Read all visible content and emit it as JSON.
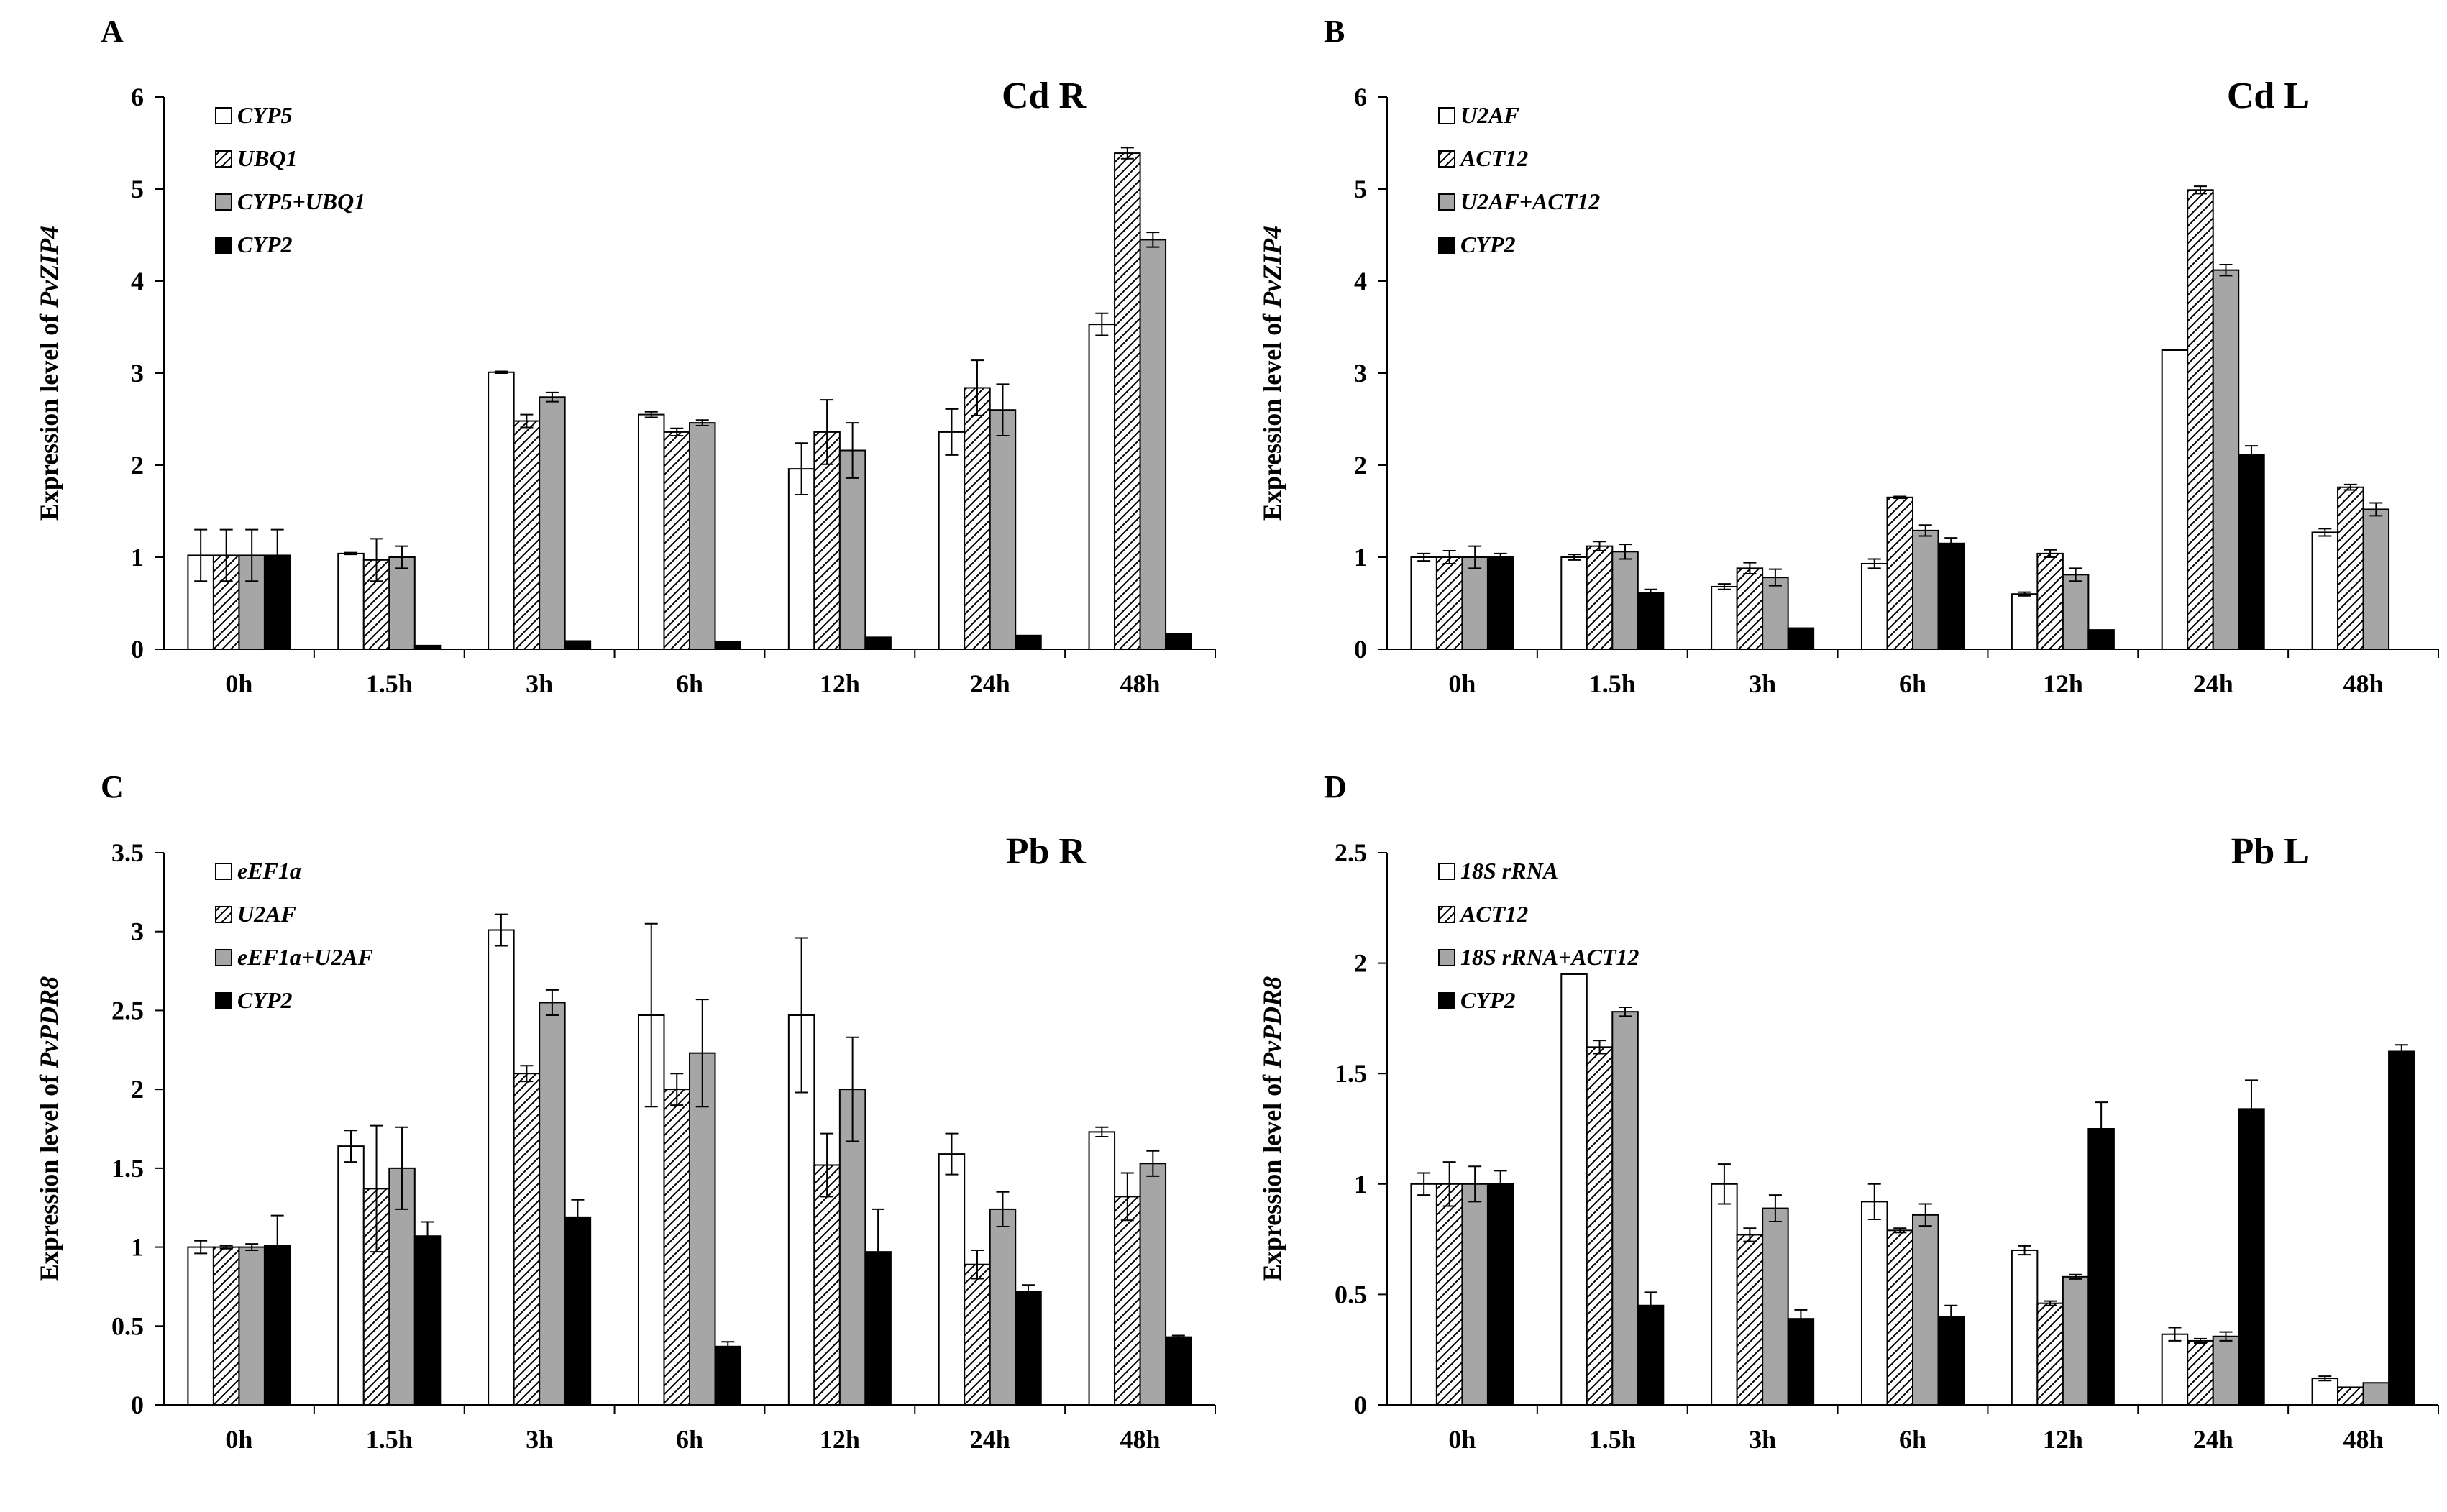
{
  "colors": {
    "series_1": "#ffffff",
    "series_2": "hatch",
    "series_3": "#a6a6a6",
    "series_4": "#000000",
    "axis": "#000000"
  },
  "chart_data": [
    {
      "panel": "A",
      "type": "bar",
      "title": "Cd R",
      "ylabel_prefix": "Expression level of ",
      "ylabel_gene": "PvZIP4",
      "xlabel": "",
      "categories": [
        "0h",
        "1.5h",
        "3h",
        "6h",
        "12h",
        "24h",
        "48h"
      ],
      "ylim": [
        0,
        6
      ],
      "yticks": [
        0,
        1,
        2,
        3,
        4,
        5,
        6
      ],
      "ytick_labels": [
        "0",
        "1",
        "2",
        "3",
        "4",
        "5",
        "6"
      ],
      "legend_position": "top-left",
      "series": [
        {
          "name": "CYP5",
          "values": [
            1.02,
            1.04,
            3.01,
            2.55,
            1.96,
            2.36,
            3.53
          ],
          "errors": [
            0.28,
            0.01,
            0.01,
            0.03,
            0.28,
            0.25,
            0.12
          ]
        },
        {
          "name": "UBQ1",
          "values": [
            1.02,
            0.97,
            2.48,
            2.36,
            2.36,
            2.84,
            5.39
          ],
          "errors": [
            0.28,
            0.23,
            0.07,
            0.04,
            0.35,
            0.3,
            0.06
          ]
        },
        {
          "name": "CYP5+UBQ1",
          "values": [
            1.02,
            1.0,
            2.74,
            2.46,
            2.16,
            2.6,
            4.45
          ],
          "errors": [
            0.28,
            0.12,
            0.05,
            0.03,
            0.3,
            0.28,
            0.08
          ]
        },
        {
          "name": "CYP2",
          "values": [
            1.02,
            0.04,
            0.09,
            0.08,
            0.13,
            0.15,
            0.17
          ],
          "errors": [
            0.28,
            0.0,
            0.0,
            0.0,
            0.0,
            0.0,
            0.0
          ]
        }
      ]
    },
    {
      "panel": "B",
      "type": "bar",
      "title": "Cd L",
      "ylabel_prefix": "Expression level of ",
      "ylabel_gene": "PvZIP4",
      "xlabel": "",
      "categories": [
        "0h",
        "1.5h",
        "3h",
        "6h",
        "12h",
        "24h",
        "48h"
      ],
      "ylim": [
        0,
        6
      ],
      "yticks": [
        0,
        1,
        2,
        3,
        4,
        5,
        6
      ],
      "ytick_labels": [
        "0",
        "1",
        "2",
        "3",
        "4",
        "5",
        "6"
      ],
      "legend_position": "top-left",
      "series": [
        {
          "name": "U2AF",
          "values": [
            1.0,
            1.0,
            0.68,
            0.93,
            0.6,
            3.25,
            1.27
          ],
          "errors": [
            0.04,
            0.03,
            0.03,
            0.05,
            0.02,
            0.0,
            0.04
          ]
        },
        {
          "name": "ACT12",
          "values": [
            1.0,
            1.12,
            0.88,
            1.65,
            1.04,
            4.99,
            1.76
          ],
          "errors": [
            0.07,
            0.05,
            0.06,
            0.01,
            0.04,
            0.04,
            0.03
          ]
        },
        {
          "name": "U2AF+ACT12",
          "values": [
            1.0,
            1.06,
            0.78,
            1.29,
            0.81,
            4.12,
            1.52
          ],
          "errors": [
            0.12,
            0.08,
            0.09,
            0.06,
            0.07,
            0.06,
            0.07
          ]
        },
        {
          "name": "CYP2",
          "values": [
            1.0,
            0.61,
            0.23,
            1.15,
            0.21,
            2.11,
            0.0
          ],
          "errors": [
            0.04,
            0.04,
            0.0,
            0.06,
            0.0,
            0.1,
            0.0
          ]
        }
      ]
    },
    {
      "panel": "C",
      "type": "bar",
      "title": "Pb R",
      "ylabel_prefix": "Expression level of ",
      "ylabel_gene": "PvPDR8",
      "xlabel": "",
      "categories": [
        "0h",
        "1.5h",
        "3h",
        "6h",
        "12h",
        "24h",
        "48h"
      ],
      "ylim": [
        0,
        3.5
      ],
      "yticks": [
        0,
        0.5,
        1,
        1.5,
        2,
        2.5,
        3,
        3.5
      ],
      "ytick_labels": [
        "0",
        "0.5",
        "1",
        "1.5",
        "2",
        "2.5",
        "3",
        "3.5"
      ],
      "legend_position": "top-left",
      "series": [
        {
          "name": "eEF1a",
          "values": [
            1.0,
            1.64,
            3.01,
            2.47,
            2.47,
            1.59,
            1.73
          ],
          "errors": [
            0.04,
            0.1,
            0.1,
            0.58,
            0.49,
            0.13,
            0.03
          ]
        },
        {
          "name": "U2AF",
          "values": [
            1.0,
            1.37,
            2.1,
            2.0,
            1.52,
            0.89,
            1.32
          ],
          "errors": [
            0.01,
            0.4,
            0.05,
            0.1,
            0.2,
            0.09,
            0.15
          ]
        },
        {
          "name": "eEF1a+U2AF",
          "values": [
            1.0,
            1.5,
            2.55,
            2.23,
            2.0,
            1.24,
            1.53
          ],
          "errors": [
            0.02,
            0.26,
            0.08,
            0.34,
            0.33,
            0.11,
            0.08
          ]
        },
        {
          "name": "CYP2",
          "values": [
            1.01,
            1.07,
            1.19,
            0.37,
            0.97,
            0.72,
            0.43
          ],
          "errors": [
            0.19,
            0.09,
            0.11,
            0.03,
            0.27,
            0.04,
            0.01
          ]
        }
      ]
    },
    {
      "panel": "D",
      "type": "bar",
      "title": "Pb L",
      "ylabel_prefix": "Expression level of ",
      "ylabel_gene": "PvPDR8",
      "xlabel": "",
      "categories": [
        "0h",
        "1.5h",
        "3h",
        "6h",
        "12h",
        "24h",
        "48h"
      ],
      "ylim": [
        0,
        2.5
      ],
      "yticks": [
        0,
        0.5,
        1,
        1.5,
        2,
        2.5
      ],
      "ytick_labels": [
        "0",
        "0.5",
        "1",
        "1.5",
        "2",
        "2.5"
      ],
      "legend_position": "top-left",
      "series": [
        {
          "name": "18S rRNA",
          "values": [
            1.0,
            1.95,
            1.0,
            0.92,
            0.7,
            0.32,
            0.12
          ],
          "errors": [
            0.05,
            0.0,
            0.09,
            0.08,
            0.02,
            0.03,
            0.01
          ]
        },
        {
          "name": "ACT12",
          "values": [
            1.0,
            1.62,
            0.77,
            0.79,
            0.46,
            0.29,
            0.08
          ],
          "errors": [
            0.1,
            0.03,
            0.03,
            0.01,
            0.01,
            0.01,
            0.0
          ]
        },
        {
          "name": "18S rRNA+ACT12",
          "values": [
            1.0,
            1.78,
            0.89,
            0.86,
            0.58,
            0.31,
            0.1
          ],
          "errors": [
            0.08,
            0.02,
            0.06,
            0.05,
            0.01,
            0.02,
            0.0
          ]
        },
        {
          "name": "CYP2",
          "values": [
            1.0,
            0.45,
            0.39,
            0.4,
            1.25,
            1.34,
            1.6
          ],
          "errors": [
            0.06,
            0.06,
            0.04,
            0.05,
            0.12,
            0.13,
            0.03
          ]
        }
      ]
    }
  ]
}
